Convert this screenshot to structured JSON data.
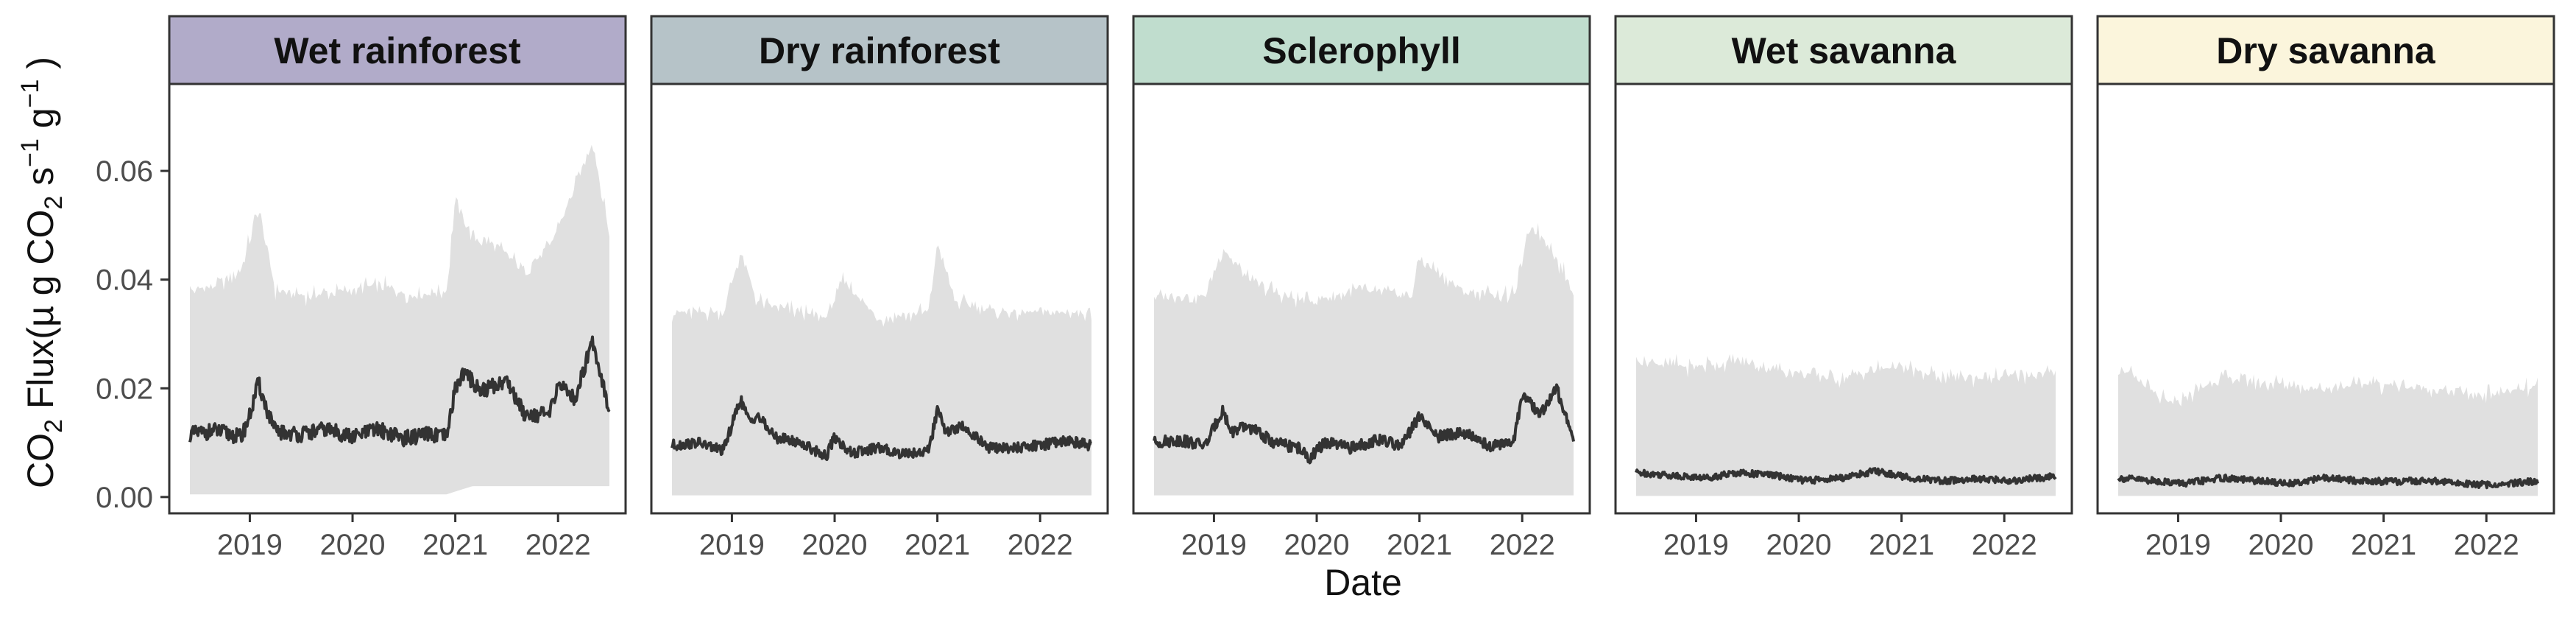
{
  "chart_data": {
    "type": "line",
    "layout": "facets",
    "xlabel": "Date",
    "ylabel_parts": {
      "prefix": "CO",
      "sub1": "2",
      "mid": " Flux(µ g CO",
      "sub2": "2",
      "s": " s",
      "sup1": "−1",
      "g": " g",
      "sup2": "−1",
      "suffix": " )"
    },
    "x_range": [
      "2018-06",
      "2022-07"
    ],
    "x_ticks": [
      "2019",
      "2020",
      "2021",
      "2022"
    ],
    "ylim": [
      -0.003,
      0.076
    ],
    "y_ticks": [
      "0.00",
      "0.02",
      "0.04",
      "0.06"
    ],
    "grid": false,
    "colors": {
      "ribbon": "#e0e0e0",
      "line": "#333333",
      "panel_border": "#333333",
      "tick_text": "#4d4d4d"
    },
    "facets": [
      {
        "name": "Wet rainforest",
        "strip_color": "#b1abc9",
        "series": [
          {
            "type": "line",
            "points": [
              [
                "2018-06",
                0.0115
              ],
              [
                "2018-09",
                0.0122
              ],
              [
                "2018-12",
                0.011
              ],
              [
                "2019-01",
                0.015
              ],
              [
                "2019-02",
                0.021
              ],
              [
                "2019-03",
                0.016
              ],
              [
                "2019-04",
                0.012
              ],
              [
                "2019-07",
                0.0115
              ],
              [
                "2019-10",
                0.0125
              ],
              [
                "2020-01",
                0.011
              ],
              [
                "2020-04",
                0.0125
              ],
              [
                "2020-07",
                0.0108
              ],
              [
                "2020-10",
                0.0115
              ],
              [
                "2020-12",
                0.011
              ],
              [
                "2021-01",
                0.02
              ],
              [
                "2021-02",
                0.023
              ],
              [
                "2021-04",
                0.0195
              ],
              [
                "2021-07",
                0.0215
              ],
              [
                "2021-09",
                0.0155
              ],
              [
                "2021-12",
                0.015
              ],
              [
                "2022-01",
                0.021
              ],
              [
                "2022-03",
                0.018
              ],
              [
                "2022-05",
                0.029
              ],
              [
                "2022-07",
                0.016
              ]
            ]
          },
          {
            "type": "ribbon_upper",
            "points": [
              [
                "2018-06",
                0.038
              ],
              [
                "2018-09",
                0.039
              ],
              [
                "2018-12",
                0.042
              ],
              [
                "2019-02",
                0.053
              ],
              [
                "2019-04",
                0.038
              ],
              [
                "2019-08",
                0.037
              ],
              [
                "2019-12",
                0.038
              ],
              [
                "2020-04",
                0.039
              ],
              [
                "2020-08",
                0.037
              ],
              [
                "2020-12",
                0.038
              ],
              [
                "2021-01",
                0.055
              ],
              [
                "2021-03",
                0.048
              ],
              [
                "2021-06",
                0.046
              ],
              [
                "2021-09",
                0.042
              ],
              [
                "2021-12",
                0.046
              ],
              [
                "2022-03",
                0.057
              ],
              [
                "2022-05",
                0.066
              ],
              [
                "2022-07",
                0.048
              ]
            ]
          },
          {
            "type": "ribbon_lower",
            "points": [
              [
                "2018-06",
                0.0005
              ],
              [
                "2020-12",
                0.0005
              ],
              [
                "2021-03",
                0.002
              ],
              [
                "2022-07",
                0.002
              ]
            ]
          }
        ]
      },
      {
        "name": "Dry rainforest",
        "strip_color": "#b6c3c8",
        "series": [
          {
            "type": "line",
            "points": [
              [
                "2018-06",
                0.0095
              ],
              [
                "2018-09",
                0.01
              ],
              [
                "2018-12",
                0.0085
              ],
              [
                "2019-02",
                0.018
              ],
              [
                "2019-03",
                0.014
              ],
              [
                "2019-04",
                0.015
              ],
              [
                "2019-06",
                0.011
              ],
              [
                "2019-09",
                0.01
              ],
              [
                "2019-12",
                0.0075
              ],
              [
                "2020-01",
                0.011
              ],
              [
                "2020-03",
                0.008
              ],
              [
                "2020-06",
                0.009
              ],
              [
                "2020-09",
                0.008
              ],
              [
                "2020-12",
                0.0085
              ],
              [
                "2021-01",
                0.016
              ],
              [
                "2021-02",
                0.012
              ],
              [
                "2021-04",
                0.013
              ],
              [
                "2021-07",
                0.009
              ],
              [
                "2021-10",
                0.009
              ],
              [
                "2022-01",
                0.0095
              ],
              [
                "2022-04",
                0.0105
              ],
              [
                "2022-07",
                0.0095
              ]
            ]
          },
          {
            "type": "ribbon_upper",
            "points": [
              [
                "2018-06",
                0.034
              ],
              [
                "2018-12",
                0.034
              ],
              [
                "2019-02",
                0.045
              ],
              [
                "2019-04",
                0.036
              ],
              [
                "2019-09",
                0.034
              ],
              [
                "2019-12",
                0.033
              ],
              [
                "2020-02",
                0.04
              ],
              [
                "2020-06",
                0.033
              ],
              [
                "2020-12",
                0.034
              ],
              [
                "2021-01",
                0.047
              ],
              [
                "2021-03",
                0.036
              ],
              [
                "2021-09",
                0.034
              ],
              [
                "2022-01",
                0.034
              ],
              [
                "2022-07",
                0.034
              ]
            ]
          },
          {
            "type": "ribbon_lower",
            "points": [
              [
                "2018-06",
                0.0003
              ],
              [
                "2022-07",
                0.0003
              ]
            ]
          }
        ]
      },
      {
        "name": "Sclerophyll",
        "strip_color": "#c0ddce",
        "series": [
          {
            "type": "line",
            "points": [
              [
                "2018-06",
                0.01
              ],
              [
                "2018-09",
                0.0105
              ],
              [
                "2018-12",
                0.0095
              ],
              [
                "2019-02",
                0.016
              ],
              [
                "2019-03",
                0.012
              ],
              [
                "2019-05",
                0.013
              ],
              [
                "2019-08",
                0.01
              ],
              [
                "2019-11",
                0.009
              ],
              [
                "2019-12",
                0.007
              ],
              [
                "2020-02",
                0.01
              ],
              [
                "2020-05",
                0.009
              ],
              [
                "2020-08",
                0.0105
              ],
              [
                "2020-11",
                0.0095
              ],
              [
                "2021-01",
                0.015
              ],
              [
                "2021-03",
                0.011
              ],
              [
                "2021-06",
                0.012
              ],
              [
                "2021-09",
                0.0095
              ],
              [
                "2021-12",
                0.01
              ],
              [
                "2022-01",
                0.019
              ],
              [
                "2022-03",
                0.015
              ],
              [
                "2022-05",
                0.02
              ],
              [
                "2022-07",
                0.011
              ]
            ]
          },
          {
            "type": "ribbon_upper",
            "points": [
              [
                "2018-06",
                0.037
              ],
              [
                "2018-12",
                0.037
              ],
              [
                "2019-02",
                0.046
              ],
              [
                "2019-05",
                0.04
              ],
              [
                "2019-09",
                0.037
              ],
              [
                "2019-12",
                0.036
              ],
              [
                "2020-06",
                0.038
              ],
              [
                "2020-12",
                0.037
              ],
              [
                "2021-01",
                0.044
              ],
              [
                "2021-06",
                0.038
              ],
              [
                "2021-12",
                0.037
              ],
              [
                "2022-02",
                0.05
              ],
              [
                "2022-04",
                0.047
              ],
              [
                "2022-07",
                0.038
              ]
            ]
          },
          {
            "type": "ribbon_lower",
            "points": [
              [
                "2018-06",
                0.0003
              ],
              [
                "2022-07",
                0.0003
              ]
            ]
          }
        ]
      },
      {
        "name": "Wet savanna",
        "strip_color": "#dcead9",
        "series": [
          {
            "type": "line",
            "points": [
              [
                "2018-06",
                0.0045
              ],
              [
                "2018-10",
                0.004
              ],
              [
                "2019-02",
                0.0035
              ],
              [
                "2019-06",
                0.0045
              ],
              [
                "2019-10",
                0.004
              ],
              [
                "2020-02",
                0.003
              ],
              [
                "2020-06",
                0.0035
              ],
              [
                "2020-10",
                0.0048
              ],
              [
                "2021-02",
                0.0035
              ],
              [
                "2021-06",
                0.003
              ],
              [
                "2021-10",
                0.0033
              ],
              [
                "2022-02",
                0.003
              ],
              [
                "2022-07",
                0.0038
              ]
            ]
          },
          {
            "type": "ribbon_upper",
            "points": [
              [
                "2018-06",
                0.025
              ],
              [
                "2018-12",
                0.024
              ],
              [
                "2019-06",
                0.025
              ],
              [
                "2019-12",
                0.023
              ],
              [
                "2020-06",
                0.022
              ],
              [
                "2020-12",
                0.024
              ],
              [
                "2021-06",
                0.022
              ],
              [
                "2021-12",
                0.022
              ],
              [
                "2022-07",
                0.023
              ]
            ]
          },
          {
            "type": "ribbon_lower",
            "points": [
              [
                "2018-06",
                0.0002
              ],
              [
                "2022-07",
                0.0002
              ]
            ]
          }
        ]
      },
      {
        "name": "Dry savanna",
        "strip_color": "#fbf5dc",
        "series": [
          {
            "type": "line",
            "points": [
              [
                "2018-06",
                0.0035
              ],
              [
                "2018-10",
                0.003
              ],
              [
                "2019-02",
                0.0025
              ],
              [
                "2019-06",
                0.0035
              ],
              [
                "2019-10",
                0.003
              ],
              [
                "2020-02",
                0.0025
              ],
              [
                "2020-06",
                0.0035
              ],
              [
                "2020-10",
                0.003
              ],
              [
                "2021-02",
                0.0028
              ],
              [
                "2021-06",
                0.003
              ],
              [
                "2021-10",
                0.0025
              ],
              [
                "2022-02",
                0.0022
              ],
              [
                "2022-07",
                0.003
              ]
            ]
          },
          {
            "type": "ribbon_upper",
            "points": [
              [
                "2018-06",
                0.024
              ],
              [
                "2018-12",
                0.017
              ],
              [
                "2019-06",
                0.022
              ],
              [
                "2019-12",
                0.021
              ],
              [
                "2020-06",
                0.02
              ],
              [
                "2020-12",
                0.021
              ],
              [
                "2021-06",
                0.02
              ],
              [
                "2021-12",
                0.019
              ],
              [
                "2022-07",
                0.02
              ]
            ]
          },
          {
            "type": "ribbon_lower",
            "points": [
              [
                "2018-06",
                0.0002
              ],
              [
                "2022-07",
                0.0002
              ]
            ]
          }
        ]
      }
    ]
  }
}
